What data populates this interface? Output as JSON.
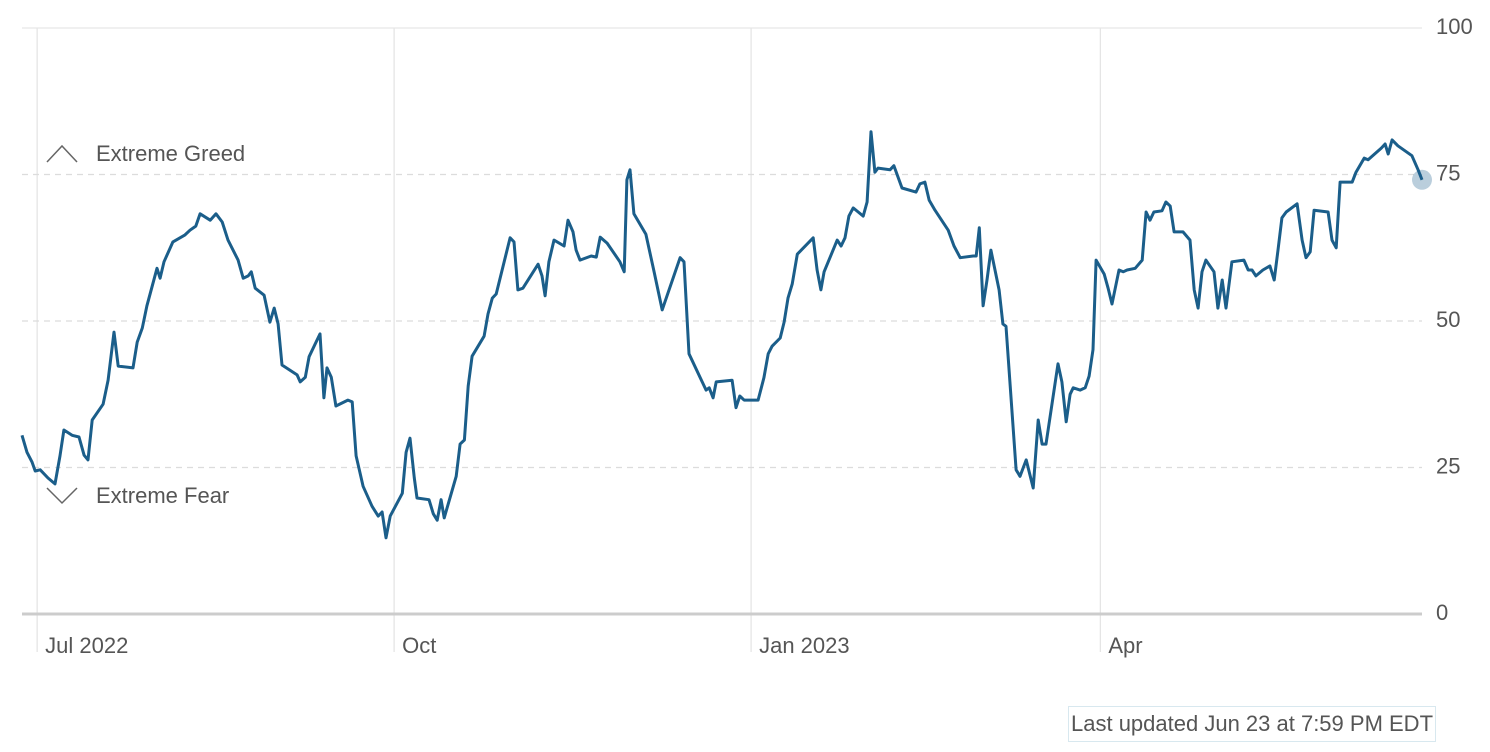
{
  "chart_data": {
    "type": "line",
    "color": "#1b5e8a",
    "grid": true,
    "annotations": [
      "Extreme Greed",
      "Extreme Fear"
    ],
    "footer": "Last updated Jun 23 at 7:59 PM EDT",
    "xlim": [
      -3.9,
      356.9
    ],
    "xticks": [
      {
        "value": 0,
        "label": "Jul 2022"
      },
      {
        "value": 92,
        "label": "Oct"
      },
      {
        "value": 184,
        "label": "Jan 2023"
      },
      {
        "value": 274,
        "label": "Apr"
      }
    ],
    "ylim": [
      0,
      100
    ],
    "yticks": [
      0,
      25,
      50,
      75,
      100
    ],
    "x": [
      -3.9,
      -2.6,
      -1.3,
      -0.5,
      0.8,
      2.8,
      4.6,
      5.9,
      6.9,
      9.0,
      10.8,
      12.1,
      13.1,
      14.2,
      17.0,
      18.3,
      19.8,
      20.9,
      24.7,
      25.8,
      27.1,
      28.3,
      30.9,
      31.7,
      32.7,
      35.0,
      38.1,
      39.4,
      40.9,
      42.0,
      44.6,
      46.1,
      47.7,
      49.2,
      51.8,
      53.1,
      54.4,
      55.2,
      56.2,
      58.5,
      60.0,
      61.1,
      62.1,
      63.1,
      67.0,
      67.8,
      69.1,
      70.1,
      72.9,
      73.9,
      74.7,
      75.8,
      77.0,
      80.1,
      81.2,
      82.2,
      84.0,
      86.3,
      87.9,
      88.9,
      89.9,
      91.0,
      94.1,
      95.1,
      96.1,
      97.2,
      97.9,
      101.0,
      102.1,
      103.1,
      104.1,
      104.9,
      108.0,
      109.0,
      110.1,
      111.1,
      112.1,
      115.2,
      116.2,
      117.3,
      118.3,
      121.9,
      122.9,
      123.9,
      125.2,
      129.1,
      130.1,
      130.9,
      131.9,
      133.2,
      135.8,
      136.8,
      138.1,
      138.9,
      139.9,
      142.8,
      144.1,
      145.1,
      146.9,
      150.2,
      151.3,
      152.0,
      152.8,
      153.8,
      156.9,
      159.0,
      161.1,
      165.7,
      166.7,
      168.0,
      171.4,
      172.4,
      173.2,
      174.2,
      175.0,
      179.1,
      180.1,
      181.1,
      182.2,
      185.8,
      187.3,
      188.4,
      189.4,
      191.5,
      192.5,
      193.5,
      194.6,
      195.9,
      200.0,
      201.0,
      202.0,
      202.8,
      206.2,
      207.2,
      208.2,
      209.2,
      210.3,
      212.9,
      213.9,
      214.9,
      215.9,
      216.7,
      219.8,
      220.8,
      222.9,
      226.5,
      227.5,
      228.8,
      229.9,
      231.4,
      234.8,
      236.3,
      237.9,
      241.2,
      242.0,
      242.8,
      243.8,
      244.8,
      245.8,
      247.9,
      248.9,
      249.7,
      252.3,
      253.3,
      254.9,
      256.7,
      258.0,
      259.0,
      260.0,
      263.1,
      264.1,
      265.2,
      266.2,
      267.0,
      268.8,
      270.1,
      271.1,
      272.1,
      272.9,
      275.0,
      276.0,
      277.0,
      278.8,
      279.9,
      280.9,
      283.0,
      284.8,
      285.8,
      286.8,
      287.8,
      289.9,
      290.9,
      292.0,
      293.0,
      295.3,
      297.1,
      298.2,
      299.2,
      300.2,
      301.2,
      303.3,
      304.3,
      305.4,
      306.4,
      307.9,
      311.0,
      312.1,
      313.1,
      314.1,
      315.9,
      317.7,
      318.8,
      319.8,
      320.8,
      321.9,
      324.7,
      326.0,
      327.0,
      328.1,
      329.1,
      332.7,
      333.7,
      334.8,
      335.8,
      338.9,
      339.9,
      342.0,
      343.0,
      346.4,
      347.4,
      348.2,
      349.2,
      350.7,
      354.3,
      355.9,
      356.9
    ],
    "values": [
      30.5,
      27.6,
      25.9,
      24.4,
      24.6,
      23.2,
      22.2,
      27,
      31.4,
      30.5,
      30.2,
      27.1,
      26.3,
      33.1,
      35.8,
      39.9,
      48.1,
      42.3,
      42,
      46.4,
      48.8,
      52.6,
      59,
      57.3,
      60.1,
      63.5,
      64.7,
      65.5,
      66.2,
      68.3,
      67.2,
      68.3,
      66.9,
      63.8,
      60.4,
      57.3,
      57.7,
      58.4,
      55.6,
      54.4,
      49.8,
      52.2,
      49.5,
      42.5,
      40.8,
      39.6,
      40.4,
      43.9,
      47.8,
      36.9,
      42,
      40.4,
      35.5,
      36.5,
      36.2,
      27,
      21.8,
      18.4,
      16.7,
      17.4,
      13,
      16.7,
      20.6,
      27.6,
      30,
      23.2,
      19.8,
      19.5,
      17.1,
      16,
      19.5,
      16.4,
      23.5,
      29,
      29.7,
      38.9,
      44,
      47.4,
      51.2,
      53.9,
      54.6,
      64.2,
      63.5,
      55.3,
      55.6,
      59.7,
      57.7,
      54.3,
      60.1,
      63.8,
      62.8,
      67.2,
      65.2,
      62.1,
      60.4,
      61.1,
      60.9,
      64.3,
      63.3,
      60.1,
      58.4,
      74.1,
      75.8,
      68.3,
      64.8,
      58.4,
      51.9,
      60.8,
      60.1,
      44.4,
      39.6,
      38.2,
      38.6,
      36.9,
      39.6,
      39.9,
      35.2,
      37.2,
      36.5,
      36.5,
      40.3,
      44.4,
      45.7,
      47.1,
      49.8,
      53.9,
      56.3,
      61.4,
      64.2,
      58.7,
      55.3,
      58.4,
      63.8,
      62.8,
      64.2,
      67.9,
      69.3,
      67.9,
      70.3,
      82.3,
      75.4,
      76.1,
      75.8,
      76.5,
      72.7,
      72,
      73.4,
      73.7,
      70.6,
      68.9,
      65.5,
      62.8,
      60.8,
      61.1,
      61.1,
      65.9,
      52.6,
      57,
      62.1,
      55.3,
      49.5,
      49.1,
      24.6,
      23.5,
      26.3,
      21.5,
      33.1,
      29,
      29,
      42.7,
      39.6,
      32.8,
      37.5,
      38.6,
      38.2,
      38.6,
      40.6,
      45.1,
      60.4,
      58,
      55.6,
      52.9,
      58.7,
      58.4,
      58.7,
      59,
      60.4,
      68.6,
      67.2,
      68.6,
      68.8,
      70.3,
      69.6,
      65.2,
      65.2,
      63.8,
      55.3,
      52.2,
      58.4,
      60.4,
      58.4,
      52.2,
      57,
      52.2,
      60.1,
      60.4,
      58.7,
      58.7,
      57.7,
      58.7,
      59.4,
      57,
      62.1,
      67.6,
      68.6,
      70,
      63.8,
      60.8,
      61.8,
      68.9,
      68.6,
      63.8,
      62.5,
      73.7,
      73.7,
      75.4,
      77.8,
      77.5,
      79.5,
      80.2,
      78.5,
      80.9,
      79.9,
      78.2,
      75.8,
      74.1
    ]
  }
}
